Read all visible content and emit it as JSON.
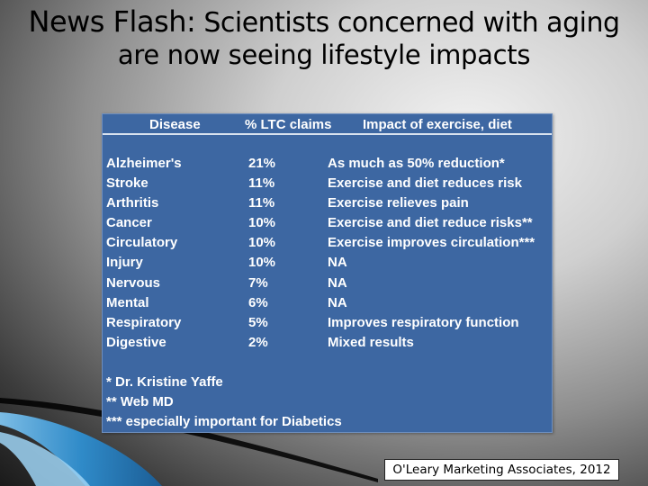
{
  "title": {
    "prefix": "News Flash:",
    "line1_rest": "Scientists concerned with aging",
    "line2": "are now seeing lifestyle impacts"
  },
  "table": {
    "headers": [
      "Disease",
      "% LTC claims",
      "Impact of exercise, diet"
    ],
    "rows": [
      [
        "Alzheimer's",
        "21%",
        "As much as 50% reduction*"
      ],
      [
        "Stroke",
        "11%",
        "Exercise and diet  reduces risk"
      ],
      [
        "Arthritis",
        "11%",
        "Exercise relieves pain"
      ],
      [
        "Cancer",
        "10%",
        "Exercise and diet reduce risks**"
      ],
      [
        "Circulatory",
        "10%",
        "Exercise improves circulation***"
      ],
      [
        "Injury",
        "10%",
        "NA"
      ],
      [
        "Nervous",
        "7%",
        "NA"
      ],
      [
        "Mental",
        "6%",
        "NA"
      ],
      [
        "Respiratory",
        "5%",
        "Improves respiratory function"
      ],
      [
        "Digestive",
        "2%",
        "Mixed results"
      ]
    ],
    "notes": [
      "* Dr. Kristine Yaffe",
      "** Web MD",
      "*** especially important for Diabetics"
    ]
  },
  "credit": "O'Leary Marketing Associates, 2012",
  "colors": {
    "panel_bg": "#3d67a2",
    "panel_text": "#ffffff",
    "swoosh": "#2f8fd0"
  }
}
